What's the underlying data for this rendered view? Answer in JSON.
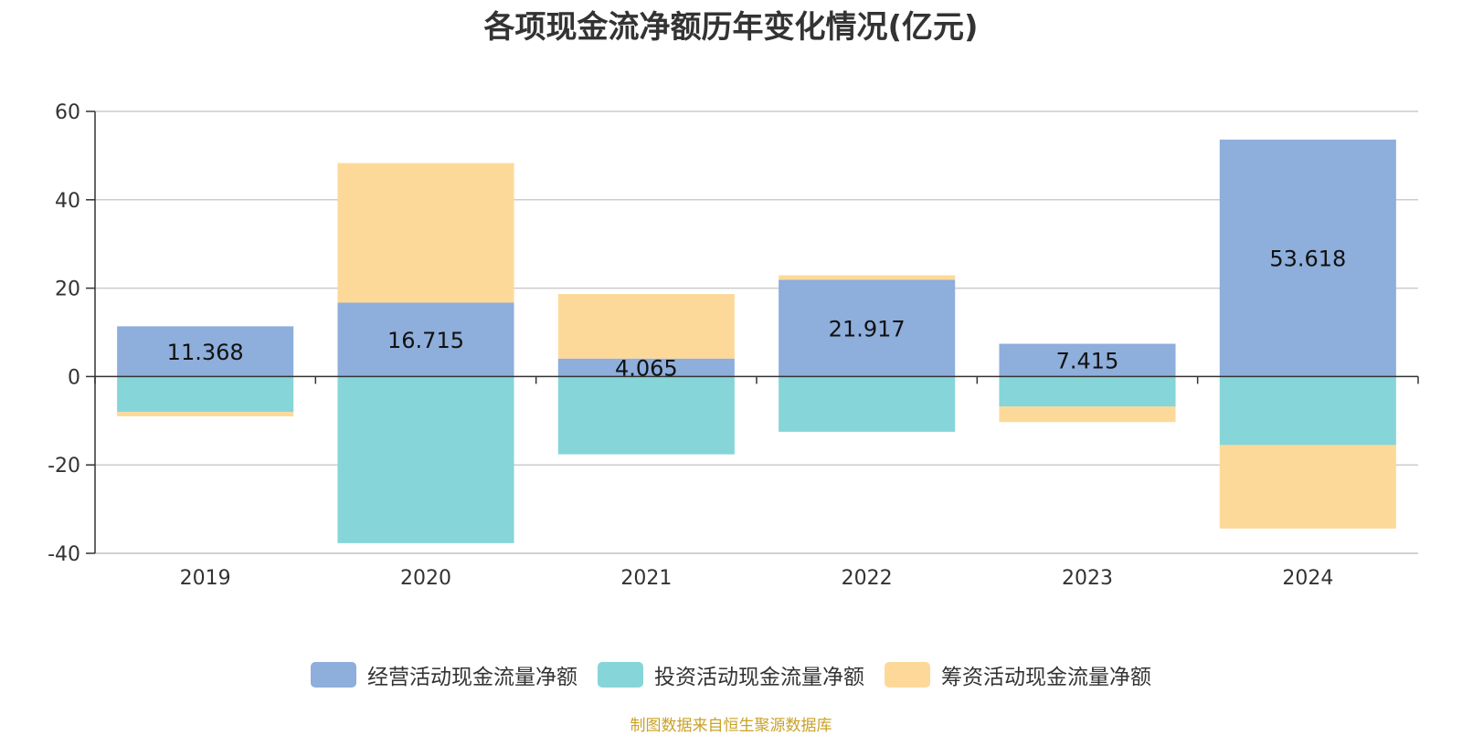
{
  "chart_data": {
    "type": "bar",
    "stacked": true,
    "title": "各项现金流净额历年变化情况(亿元)",
    "categories": [
      "2019",
      "2020",
      "2021",
      "2022",
      "2023",
      "2024"
    ],
    "series": [
      {
        "name": "经营活动现金流量净额",
        "color": "#8eaedb",
        "values": [
          11.368,
          16.715,
          4.065,
          21.917,
          7.415,
          53.618
        ],
        "show_labels": true
      },
      {
        "name": "投资活动现金流量净额",
        "color": "#86d5d8",
        "values": [
          -8.0,
          -37.7,
          -17.6,
          -12.5,
          -6.8,
          -15.5
        ],
        "show_labels": false
      },
      {
        "name": "筹资活动现金流量净额",
        "color": "#fdd999",
        "values": [
          -1.0,
          31.6,
          14.6,
          1.0,
          -3.5,
          -18.9
        ],
        "show_labels": false
      }
    ],
    "ylim": [
      -40,
      60
    ],
    "yticks": [
      "-40",
      "-20",
      "0",
      "20",
      "40",
      "60"
    ],
    "grid": true,
    "legend_position": "bottom",
    "source": "制图数据来自恒生聚源数据库"
  }
}
